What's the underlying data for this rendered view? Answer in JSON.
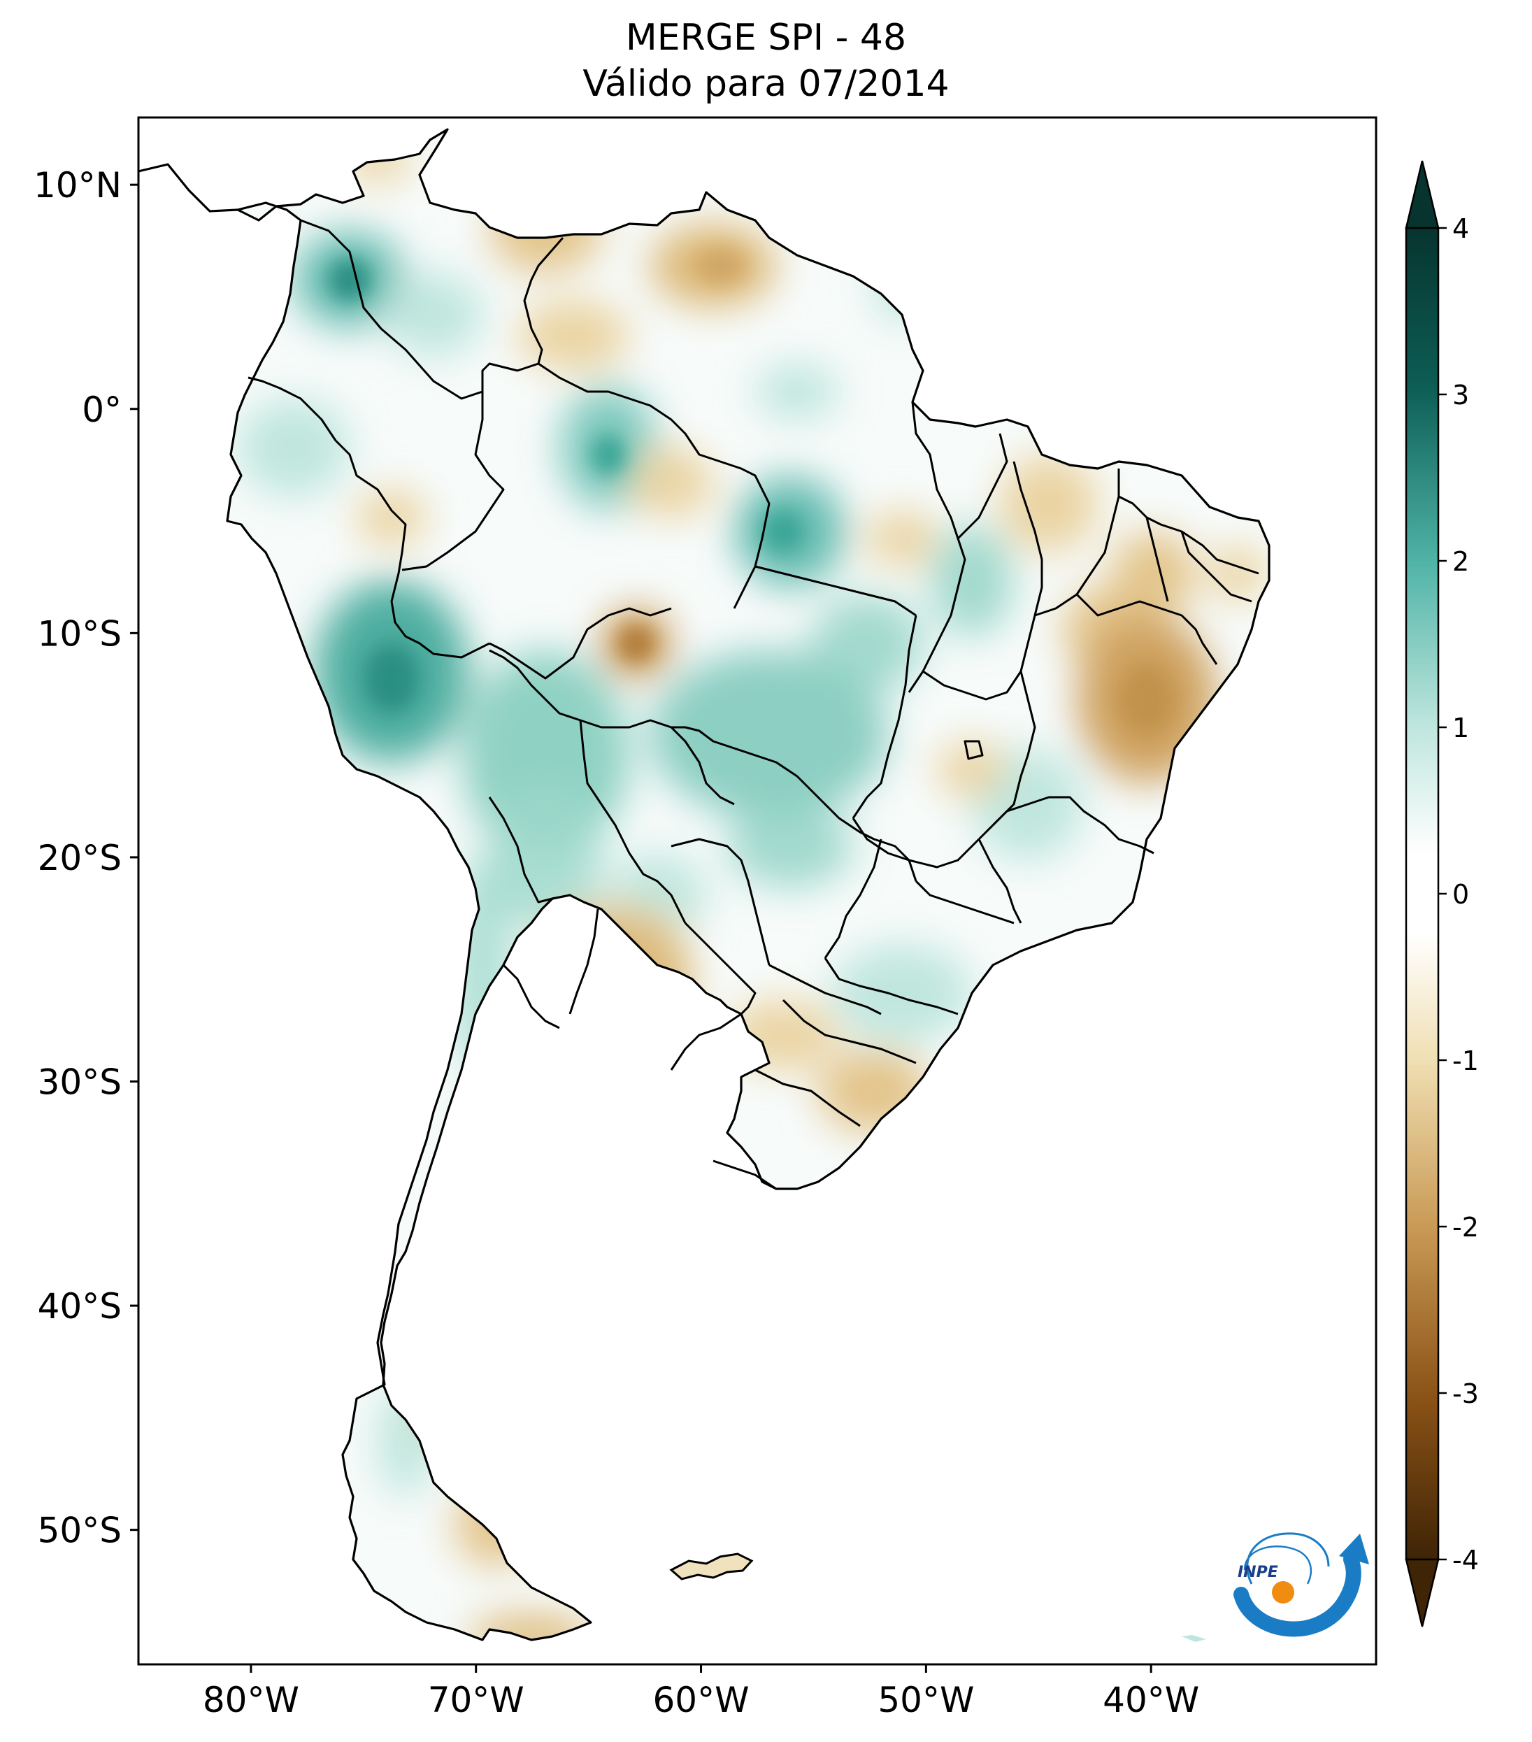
{
  "title": {
    "line1": "MERGE   SPI - 48",
    "line2": "Válido para 07/2014"
  },
  "map": {
    "region": "South America",
    "lon_range": [
      -85,
      -30
    ],
    "lat_range": [
      -56,
      13
    ],
    "lat_ticks": [
      {
        "value": 10,
        "label": "10°N"
      },
      {
        "value": 0,
        "label": "0°"
      },
      {
        "value": -10,
        "label": "10°S"
      },
      {
        "value": -20,
        "label": "20°S"
      },
      {
        "value": -30,
        "label": "30°S"
      },
      {
        "value": -40,
        "label": "40°S"
      },
      {
        "value": -50,
        "label": "50°S"
      }
    ],
    "lon_ticks": [
      {
        "value": -80,
        "label": "80°W"
      },
      {
        "value": -70,
        "label": "70°W"
      },
      {
        "value": -60,
        "label": "60°W"
      },
      {
        "value": -50,
        "label": "50°W"
      },
      {
        "value": -40,
        "label": "40°W"
      }
    ],
    "colors": {
      "wet_strong": "#0d5e55",
      "wet_moderate": "#4fb3a6",
      "wet_light": "#bfe6de",
      "neutral": "#ffffff",
      "dry_light": "#f0dfb3",
      "dry_moderate": "#d5ae6a",
      "dry_strong": "#8a5216",
      "border": "#000000"
    }
  },
  "colorbar": {
    "min": -4,
    "max": 4,
    "ticks": [
      {
        "value": 4,
        "label": "4"
      },
      {
        "value": 3,
        "label": "3"
      },
      {
        "value": 2,
        "label": "2"
      },
      {
        "value": 1,
        "label": "1"
      },
      {
        "value": 0,
        "label": "0"
      },
      {
        "value": -1,
        "label": "-1"
      },
      {
        "value": -2,
        "label": "-2"
      },
      {
        "value": -3,
        "label": "-3"
      },
      {
        "value": -4,
        "label": "-4"
      }
    ],
    "extend": "both"
  },
  "logo": {
    "text": "INPE"
  }
}
